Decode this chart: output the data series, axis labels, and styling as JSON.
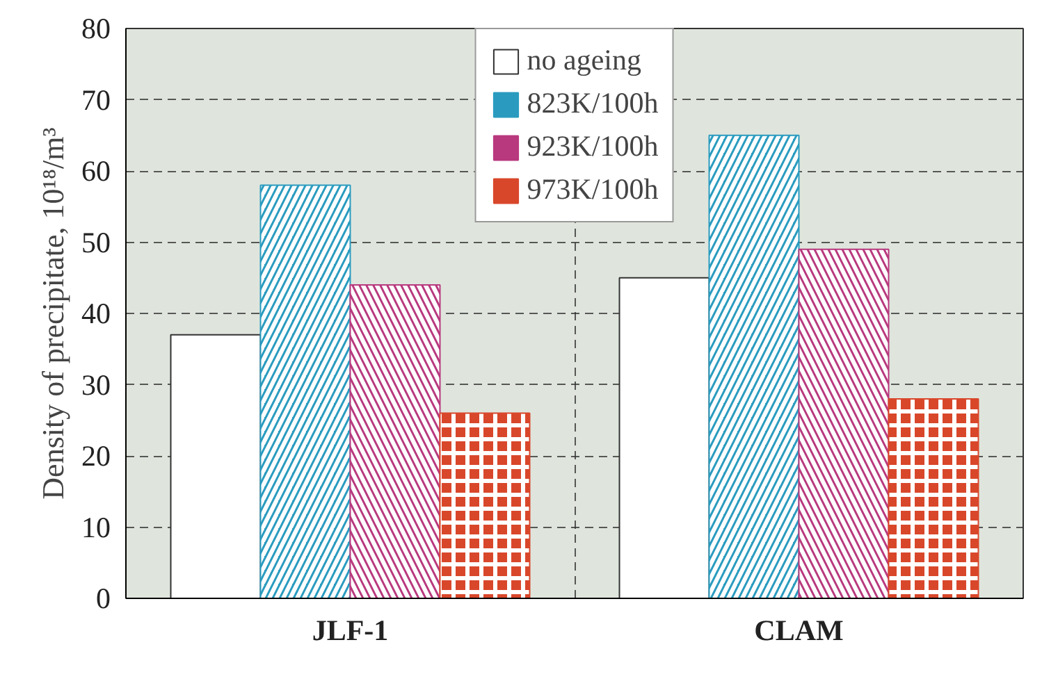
{
  "chart_data": {
    "type": "bar",
    "ylabel": "Density of precipitate, 10¹⁸/m³",
    "categories": [
      "JLF-1",
      "CLAM"
    ],
    "series": [
      {
        "name": "no ageing",
        "color": "#ffffff",
        "values": [
          37,
          45
        ]
      },
      {
        "name": "823K/100h",
        "color": "#2a9bbf",
        "values": [
          58,
          65
        ]
      },
      {
        "name": "923K/100h",
        "color": "#b8397e",
        "values": [
          44,
          49
        ]
      },
      {
        "name": "973K/100h",
        "color": "#d9472b",
        "values": [
          26,
          28
        ]
      }
    ],
    "ylim": [
      0,
      80
    ],
    "yticks": [
      0,
      10,
      20,
      30,
      40,
      50,
      60,
      70,
      80
    ],
    "grid": true,
    "legend": "top"
  }
}
